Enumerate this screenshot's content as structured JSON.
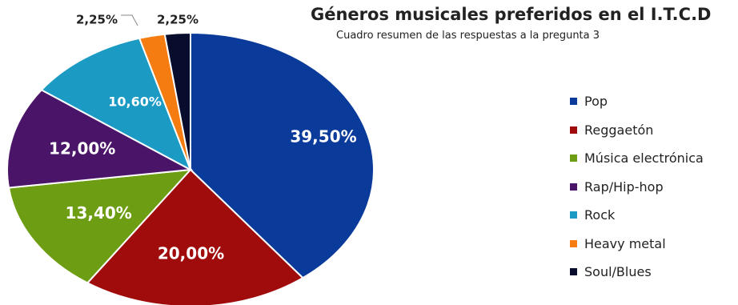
{
  "header": {
    "title": "Géneros musicales preferidos en el I.T.C.D",
    "subtitle": "Cuadro resumen de las respuestas a la pregunta 3"
  },
  "chart_data": {
    "type": "pie",
    "title": "Géneros musicales preferidos en el I.T.C.D",
    "subtitle": "Cuadro resumen de las respuestas a la pregunta 3",
    "legend_position": "right",
    "slices": [
      {
        "label": "Pop",
        "value": 39.5,
        "display": "39,50%",
        "color": "#0a3a9a"
      },
      {
        "label": "Reggaetón",
        "value": 20.0,
        "display": "20,00%",
        "color": "#a00c0c"
      },
      {
        "label": "Música electrónica",
        "value": 13.4,
        "display": "13,40%",
        "color": "#6d9d12"
      },
      {
        "label": "Rap/Hip-hop",
        "value": 12.0,
        "display": "12,00%",
        "color": "#4a1568"
      },
      {
        "label": "Rock",
        "value": 10.6,
        "display": "10,60%",
        "color": "#1b9bc4"
      },
      {
        "label": "Heavy metal",
        "value": 2.25,
        "display": "2,25%",
        "color": "#f57c10"
      },
      {
        "label": "Soul/Blues",
        "value": 2.25,
        "display": "2,25%",
        "color": "#080d2e"
      }
    ]
  }
}
